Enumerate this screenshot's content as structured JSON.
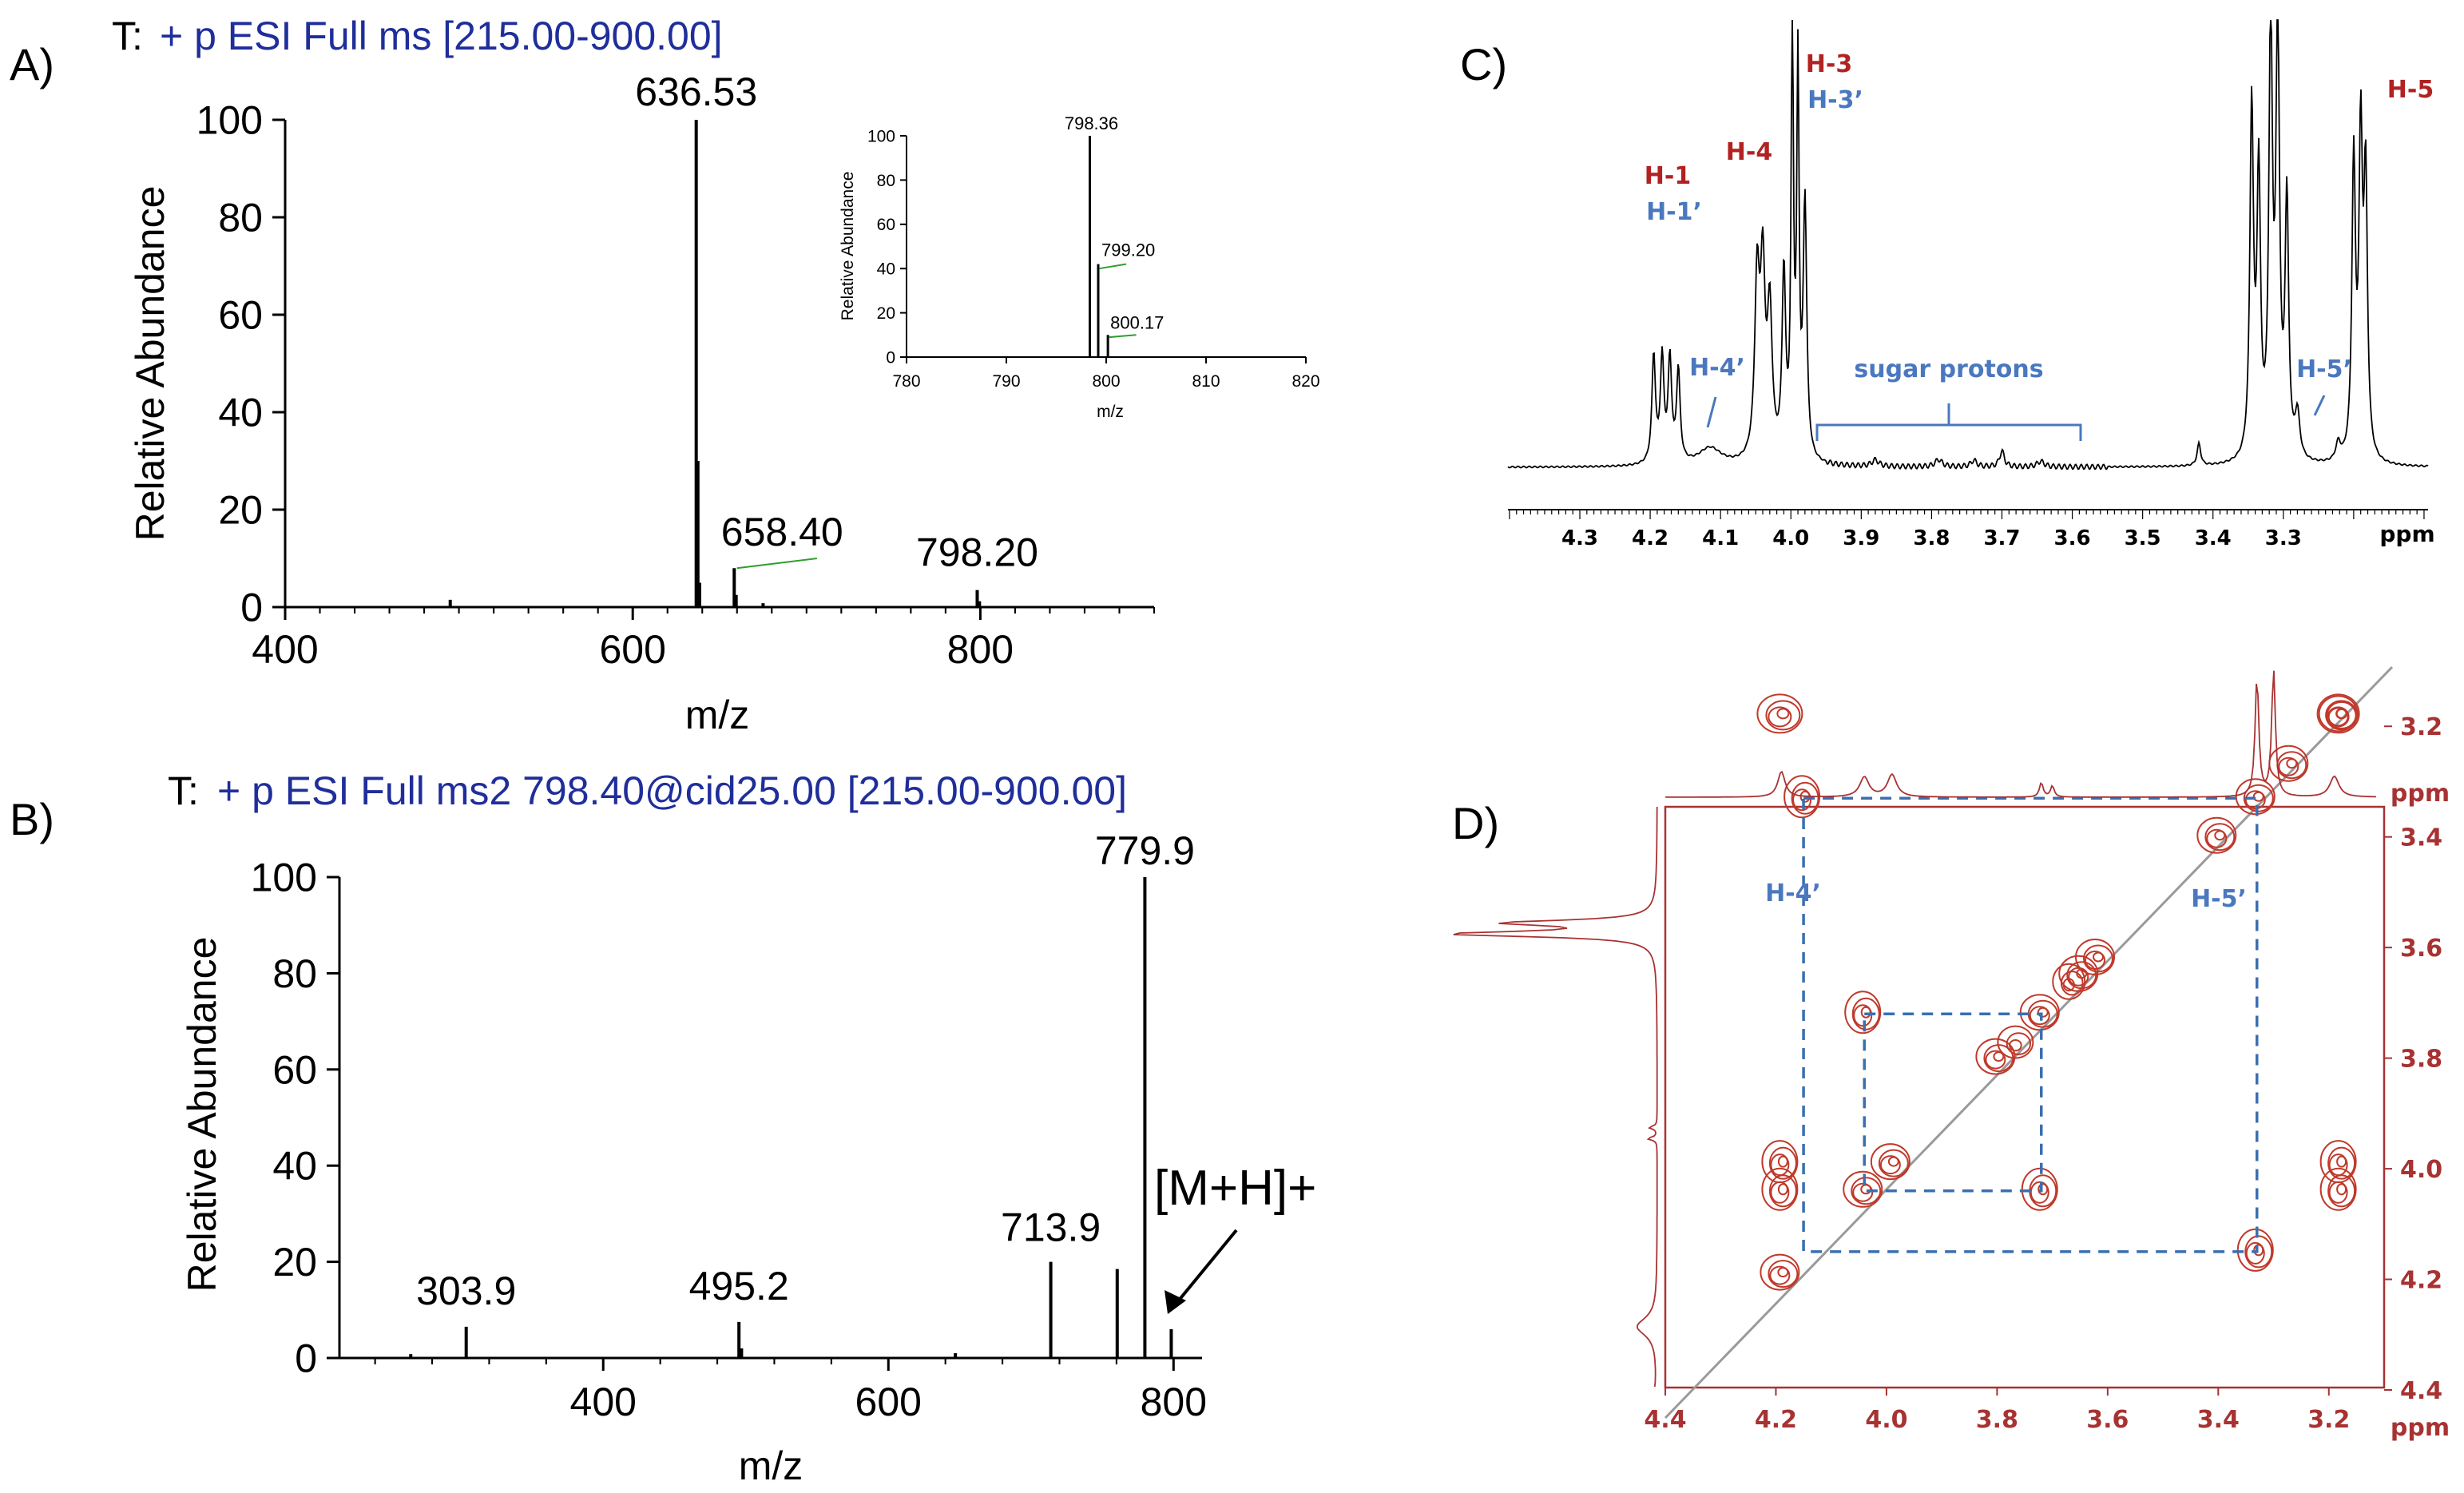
{
  "panels": {
    "A": {
      "letter": "A)",
      "header_prefix": "T:",
      "header": "+ p ESI Full ms [215.00-900.00]",
      "ylabel": "Relative Abundance",
      "xlabel": "m/z"
    },
    "B": {
      "letter": "B)",
      "header_prefix": "T:",
      "header": "+ p ESI Full ms2 798.40@cid25.00 [215.00-900.00]",
      "ylabel": "Relative Abundance",
      "xlabel": "m/z",
      "arrow_label": "[M+H]+"
    },
    "C": {
      "letter": "C)",
      "ppm_label": "ppm",
      "labels": {
        "h1": "H-1",
        "h1p": "H-1’",
        "h4": "H-4",
        "h3": "H-3",
        "h3p": "H-3’",
        "h5": "H-5",
        "h4p": "H-4’",
        "sugar": "sugar protons",
        "h5p": "H-5’"
      }
    },
    "D": {
      "letter": "D)",
      "ppm_top": "ppm",
      "ppm_bottom": "ppm",
      "h4p": "H-4’",
      "h5p": "H-5’"
    }
  },
  "colors": {
    "blue_text": "#1f2e9a",
    "nmr_red": "#b22222",
    "nmr_blue": "#4a78bf",
    "contour_red": "#c0392b",
    "axis_red": "#a83232",
    "green": "#2e9e2e",
    "diag": "#9a9a9a"
  },
  "chart_data": [
    {
      "id": "A",
      "type": "bar",
      "title": "+ p ESI Full ms [215.00-900.00]",
      "xlabel": "m/z",
      "ylabel": "Relative Abundance",
      "xlim": [
        400,
        900
      ],
      "ylim": [
        0,
        100
      ],
      "xticks": [
        400,
        600,
        800
      ],
      "yticks": [
        0,
        20,
        40,
        60,
        80,
        100
      ],
      "peaks": [
        {
          "x": 495,
          "y": 1.5
        },
        {
          "x": 636.53,
          "y": 100,
          "label": "636.53"
        },
        {
          "x": 637.5,
          "y": 30
        },
        {
          "x": 638.5,
          "y": 5
        },
        {
          "x": 658.4,
          "y": 8,
          "label": "658.40"
        },
        {
          "x": 659.5,
          "y": 2.5
        },
        {
          "x": 675,
          "y": 0.8
        },
        {
          "x": 798.2,
          "y": 3.5,
          "label": "798.20"
        },
        {
          "x": 799.5,
          "y": 1.2
        }
      ]
    },
    {
      "id": "A-inset",
      "type": "bar",
      "xlabel": "m/z",
      "ylabel": "Relative Abundance",
      "xlim": [
        780,
        820
      ],
      "ylim": [
        0,
        100
      ],
      "xticks": [
        780,
        790,
        800,
        810,
        820
      ],
      "yticks": [
        0,
        20,
        40,
        60,
        80,
        100
      ],
      "peaks": [
        {
          "x": 798.36,
          "y": 100,
          "label": "798.36"
        },
        {
          "x": 799.2,
          "y": 42,
          "label": "799.20"
        },
        {
          "x": 800.17,
          "y": 10,
          "label": "800.17"
        }
      ]
    },
    {
      "id": "B",
      "type": "bar",
      "title": "+ p ESI Full ms2 798.40@cid25.00 [215.00-900.00]",
      "xlabel": "m/z",
      "ylabel": "Relative Abundance",
      "xlim": [
        215,
        820
      ],
      "ylim": [
        0,
        100
      ],
      "xticks": [
        400,
        600,
        800
      ],
      "yticks": [
        0,
        20,
        40,
        60,
        80,
        100
      ],
      "peaks": [
        {
          "x": 265,
          "y": 0.8
        },
        {
          "x": 303.9,
          "y": 6.5,
          "label": "303.9"
        },
        {
          "x": 495.2,
          "y": 7.5,
          "label": "495.2"
        },
        {
          "x": 497,
          "y": 2
        },
        {
          "x": 647,
          "y": 1
        },
        {
          "x": 713.9,
          "y": 20,
          "label": "713.9"
        },
        {
          "x": 760.5,
          "y": 18.5
        },
        {
          "x": 779.9,
          "y": 100,
          "label": "779.9"
        },
        {
          "x": 798.4,
          "y": 6
        }
      ]
    },
    {
      "id": "C",
      "type": "line",
      "xlabel": "ppm",
      "xlim": [
        4.4,
        3.1
      ],
      "reversed_axis": true,
      "xticks": [
        4.3,
        4.2,
        4.1,
        4.0,
        3.9,
        3.8,
        3.7,
        3.6,
        3.5,
        3.4,
        3.3
      ],
      "xtick_labels": [
        "4.3",
        "4.2",
        "4.1",
        "4.0",
        "3.9",
        "3.8",
        "3.7",
        "3.6",
        "3.5",
        "3.4",
        "3.3"
      ],
      "annotations": [
        "H-1",
        "H-1’",
        "H-4",
        "H-3",
        "H-3’",
        "H-5",
        "H-4’",
        "sugar protons",
        "H-5’"
      ]
    },
    {
      "id": "D",
      "type": "heatmap",
      "xlabel": "ppm",
      "ylabel": "ppm",
      "xlim": [
        4.4,
        3.1
      ],
      "ylim": [
        3.1,
        4.4
      ],
      "xticks": [
        4.4,
        4.2,
        4.0,
        3.8,
        3.6,
        3.4,
        3.2
      ],
      "xtick_labels": [
        "4.4",
        "4.2",
        "4.0",
        "3.8",
        "3.6",
        "3.4",
        "3.2"
      ],
      "yticks": [
        3.2,
        3.4,
        3.6,
        3.8,
        4.0,
        4.2,
        4.4
      ],
      "ytick_labels": [
        "3.2",
        "3.4",
        "3.6",
        "3.8",
        "4.0",
        "4.2",
        "4.4"
      ],
      "cross_peaks": [
        {
          "x": 4.19,
          "y": 3.99
        },
        {
          "x": 4.19,
          "y": 4.04
        },
        {
          "x": 4.04,
          "y": 3.72
        },
        {
          "x": 3.72,
          "y": 4.04
        },
        {
          "x": 4.15,
          "y": 3.33
        },
        {
          "x": 3.33,
          "y": 4.15
        },
        {
          "x": 3.18,
          "y": 4.04
        },
        {
          "x": 3.18,
          "y": 3.99
        }
      ],
      "diagonal_peaks": [
        4.19,
        4.04,
        3.99,
        3.8,
        3.72,
        3.65,
        3.62,
        3.4,
        3.33,
        3.27,
        3.18
      ],
      "correlation_boxes": [
        [
          4.15,
          3.33
        ],
        [
          4.04,
          3.72
        ]
      ],
      "annotations": [
        "H-4’",
        "H-5’"
      ]
    }
  ]
}
